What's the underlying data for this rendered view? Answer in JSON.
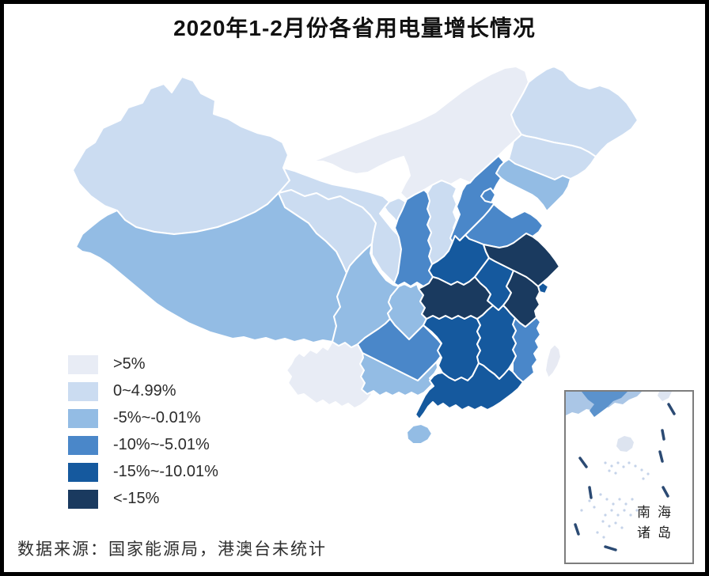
{
  "title": "2020年1-2月份各省用电量增长情况",
  "source_note": "数据来源：国家能源局，港澳台未统计",
  "frame_color": "#000000",
  "legend": {
    "items": [
      {
        "label": ">5%",
        "color": "#e8ecf5"
      },
      {
        "label": "0~4.99%",
        "color": "#cbdcf1"
      },
      {
        "label": "-5%~-0.01%",
        "color": "#93bce4"
      },
      {
        "label": "-10%~-5.01%",
        "color": "#4a87c9"
      },
      {
        "label": "-15%~-10.01%",
        "color": "#15599e"
      },
      {
        "label": "<-15%",
        "color": "#1a3a5f"
      }
    ]
  },
  "map": {
    "stroke_color": "#ffffff",
    "uncounted_color": "#e7eaf3",
    "sea_color": "#ffffff"
  },
  "inset": {
    "label_line1": "南海",
    "label_line2": "诸岛",
    "border_color": "#7d7d7d",
    "dash_color": "#2b4a73",
    "island_dot_color": "#c5d3e9"
  },
  "chart_data": {
    "type": "choropleth",
    "region": "China provinces",
    "metric": "2020年1-2月份各省用电量同比增长",
    "categories": [
      ">5%",
      "0~4.99%",
      "-5%~-0.01%",
      "-10%~-5.01%",
      "-15%~-10.01%",
      "<-15%"
    ],
    "uncounted_regions": [
      "台湾",
      "香港",
      "澳门"
    ],
    "provinces": [
      {
        "id": "neimenggu",
        "name": "内蒙古",
        "category": 0
      },
      {
        "id": "yunnan",
        "name": "云南",
        "category": 0
      },
      {
        "id": "xinjiang",
        "name": "新疆",
        "category": 1
      },
      {
        "id": "heilongjiang",
        "name": "黑龙江",
        "category": 1
      },
      {
        "id": "jilin",
        "name": "吉林",
        "category": 1
      },
      {
        "id": "gansu",
        "name": "甘肃",
        "category": 1
      },
      {
        "id": "qinghai",
        "name": "青海",
        "category": 1
      },
      {
        "id": "ningxia",
        "name": "宁夏",
        "category": 1
      },
      {
        "id": "shanxi",
        "name": "山西",
        "category": 1
      },
      {
        "id": "xizang",
        "name": "西藏",
        "category": 2
      },
      {
        "id": "sichuan",
        "name": "四川",
        "category": 2
      },
      {
        "id": "chongqing",
        "name": "重庆",
        "category": 2
      },
      {
        "id": "guangxi",
        "name": "广西",
        "category": 2
      },
      {
        "id": "hainan",
        "name": "海南",
        "category": 2
      },
      {
        "id": "liaoning",
        "name": "辽宁",
        "category": 2
      },
      {
        "id": "beijing",
        "name": "北京",
        "category": 2
      },
      {
        "id": "shaanxi",
        "name": "陕西",
        "category": 3
      },
      {
        "id": "hebei",
        "name": "河北",
        "category": 3
      },
      {
        "id": "tianjin",
        "name": "天津",
        "category": 3
      },
      {
        "id": "shandong",
        "name": "山东",
        "category": 3
      },
      {
        "id": "guizhou",
        "name": "贵州",
        "category": 3
      },
      {
        "id": "fujian",
        "name": "福建",
        "category": 3
      },
      {
        "id": "henan",
        "name": "河南",
        "category": 4
      },
      {
        "id": "anhui",
        "name": "安徽",
        "category": 4
      },
      {
        "id": "hunan",
        "name": "湖南",
        "category": 4
      },
      {
        "id": "jiangxi",
        "name": "江西",
        "category": 4
      },
      {
        "id": "guangdong",
        "name": "广东",
        "category": 4
      },
      {
        "id": "shanghai",
        "name": "上海",
        "category": 4
      },
      {
        "id": "hubei",
        "name": "湖北",
        "category": 5
      },
      {
        "id": "jiangsu",
        "name": "江苏",
        "category": 5
      },
      {
        "id": "zhejiang",
        "name": "浙江",
        "category": 5
      }
    ]
  }
}
